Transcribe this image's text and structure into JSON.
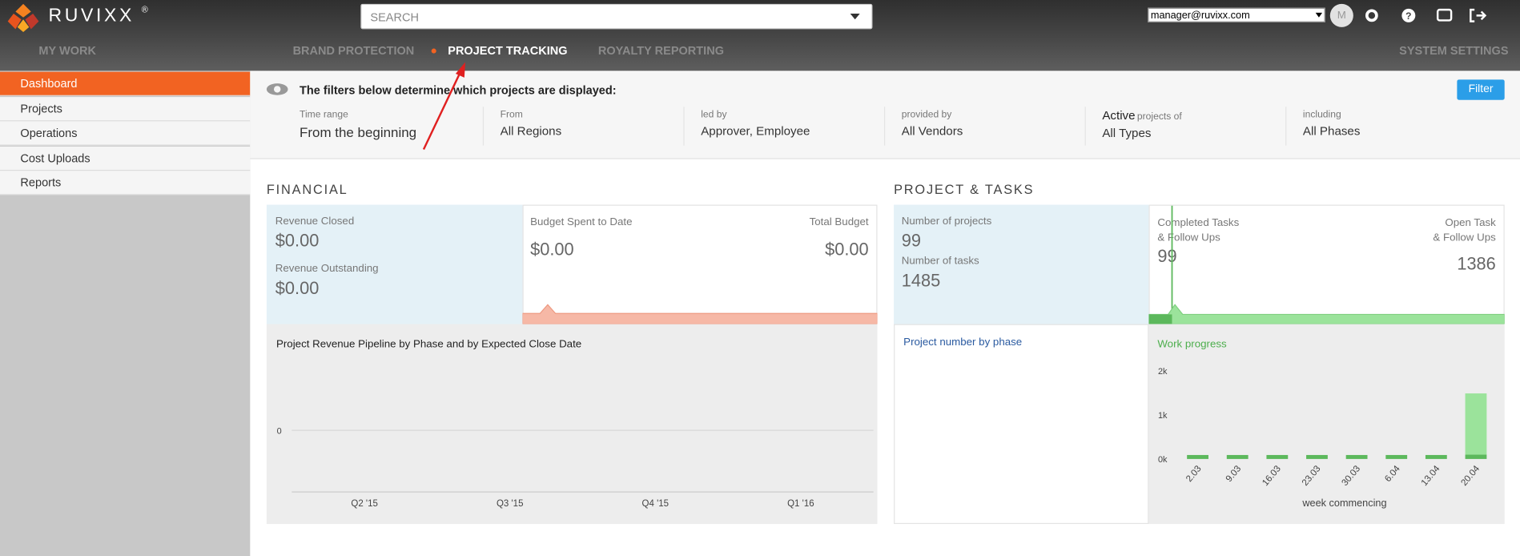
{
  "brand": "RUVIXX",
  "brand_mark": "®",
  "search_placeholder": "SEARCH",
  "user": "manager@ruvixx.com",
  "avatar": "M",
  "nav": [
    "MY WORK",
    "BRAND PROTECTION",
    "PROJECT TRACKING",
    "ROYALTY REPORTING",
    "SYSTEM SETTINGS"
  ],
  "sidebar": [
    "Dashboard",
    "Projects",
    "Operations",
    "Cost Uploads",
    "Reports"
  ],
  "filters": {
    "heading": "The filters below determine which projects are displayed:",
    "button": "Filter",
    "items": [
      {
        "label": "Time range",
        "value": "From the beginning"
      },
      {
        "label": "From",
        "value": "All Regions"
      },
      {
        "label": "led by",
        "value": "Approver, Employee"
      },
      {
        "label": "provided by",
        "value": "All Vendors"
      },
      {
        "prefix": "Active",
        "label": "projects of",
        "value": "All Types"
      },
      {
        "label": "including",
        "value": "All Phases"
      }
    ]
  },
  "financial": {
    "title": "FINANCIAL",
    "revenue_closed_label": "Revenue Closed",
    "revenue_closed": "$0.00",
    "revenue_outstanding_label": "Revenue Outstanding",
    "revenue_outstanding": "$0.00",
    "budget_spent_label": "Budget Spent to Date",
    "budget_spent": "$0.00",
    "total_budget_label": "Total Budget",
    "total_budget": "$0.00"
  },
  "projects": {
    "title": "PROJECT & TASKS",
    "projects_label": "Number of projects",
    "projects": "99",
    "tasks_label": "Number of tasks",
    "tasks": "1485",
    "completed_label": "Completed Tasks\n& Follow Ups",
    "completed": "99",
    "open_label": "Open Task\n& Follow Ups",
    "open": "1386",
    "phase_title": "Project number by phase"
  },
  "chart_data": [
    {
      "type": "bar",
      "title": "Project Revenue Pipeline by Phase and by Expected Close Date",
      "categories": [
        "Q2 '15",
        "Q3 '15",
        "Q4 '15",
        "Q1 '16"
      ],
      "ylim": [
        -1,
        1
      ],
      "yticks": [
        0
      ],
      "grid": true
    },
    {
      "type": "stacked_bar",
      "title": "Work progress",
      "x_label": "week commencing",
      "categories": [
        "2.03",
        "9.03",
        "16.03",
        "23.03",
        "30.03",
        "6.04",
        "13.04",
        "20.04"
      ],
      "ylim": [
        0,
        2000
      ],
      "yticks": [
        {
          "value": 0,
          "label": "0k"
        },
        {
          "value": 1000,
          "label": "1k"
        },
        {
          "value": 2000,
          "label": "2k"
        }
      ],
      "series": [
        {
          "color": "#5cb85c",
          "values": [
            90,
            90,
            90,
            90,
            90,
            90,
            90,
            99
          ]
        },
        {
          "color": "#9be39b",
          "values": [
            0,
            0,
            0,
            0,
            0,
            0,
            0,
            1386
          ]
        }
      ]
    }
  ]
}
